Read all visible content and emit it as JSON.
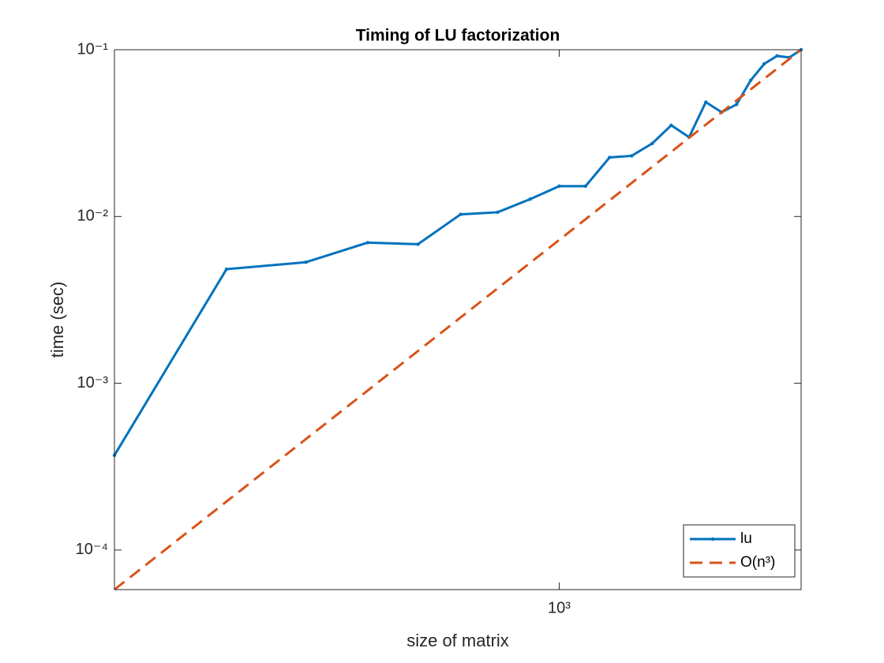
{
  "chart_data": {
    "type": "line",
    "title": "Timing of LU factorization",
    "x_label": "size of matrix",
    "y_label": "time (sec)",
    "x": [
      200,
      300,
      400,
      500,
      600,
      700,
      800,
      900,
      1000,
      1100,
      1200,
      1300,
      1400,
      1500,
      1600,
      1700,
      1800,
      1900,
      2000,
      2100,
      2200,
      2300,
      2400
    ],
    "series": [
      {
        "name": "lu",
        "color": "#0072bd",
        "line_style": "solid",
        "marker": "point",
        "values": [
          0.00037,
          0.00483,
          0.00532,
          0.00697,
          0.00682,
          0.0103,
          0.0106,
          0.0127,
          0.0152,
          0.0152,
          0.0226,
          0.0231,
          0.0274,
          0.0352,
          0.0299,
          0.0485,
          0.0422,
          0.047,
          0.0656,
          0.0823,
          0.0918,
          0.0898,
          0.1
        ]
      },
      {
        "name": "O(n³)",
        "color": "#d95319",
        "line_style": "dashed",
        "marker": "none",
        "values": [
          5.79e-05,
          0.0001953,
          0.000463,
          0.000904,
          0.0015625,
          0.002481,
          0.003704,
          0.005273,
          0.007234,
          0.009628,
          0.0125,
          0.01589,
          0.01985,
          0.02441,
          0.02963,
          0.03554,
          0.04219,
          0.04962,
          0.05787,
          0.06699,
          0.07703,
          0.08802,
          0.1
        ]
      }
    ],
    "xscale": "log",
    "yscale": "log",
    "xlim": [
      200,
      2400
    ],
    "ylim": [
      5.79e-05,
      0.1
    ],
    "xticks": [
      {
        "value": 1000,
        "label": "10³"
      }
    ],
    "yticks": [
      {
        "value": 0.0001,
        "label": "10⁻⁴"
      },
      {
        "value": 0.001,
        "label": "10⁻³"
      },
      {
        "value": 0.01,
        "label": "10⁻²"
      },
      {
        "value": 0.1,
        "label": "10⁻¹"
      }
    ],
    "grid": false,
    "legend": "southeast"
  }
}
